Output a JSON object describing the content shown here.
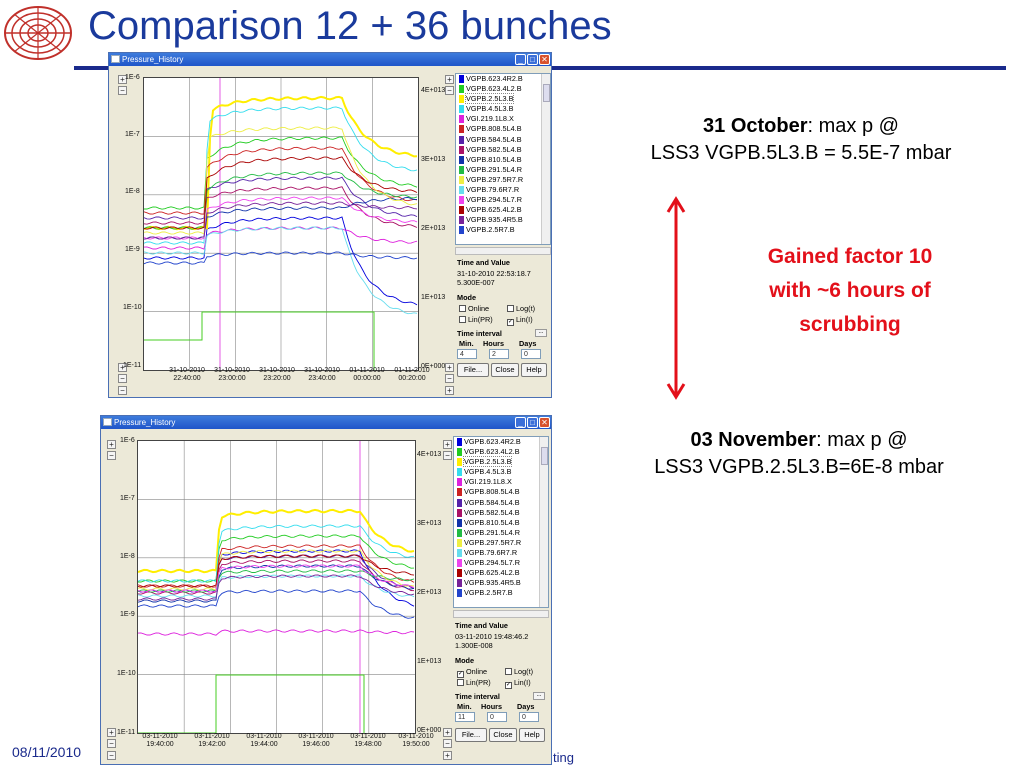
{
  "slide": {
    "title": "Comparison 12 + 36 bunches",
    "footer_date": "08/11/2010",
    "footer_tail": "ting"
  },
  "window1": {
    "title": "Pressure_History",
    "y_ticks": [
      "1E-6",
      "1E-7",
      "1E-8",
      "1E-9",
      "1E-10",
      "1E-11"
    ],
    "y2_ticks": [
      "4E+013",
      "3E+013",
      "2E+013",
      "1E+013",
      "0E+000"
    ],
    "x_ticks": [
      {
        "date": "31-10-2010",
        "time": "22:40:00"
      },
      {
        "date": "31-10-2010",
        "time": "23:00:00"
      },
      {
        "date": "31-10-2010",
        "time": "23:20:00"
      },
      {
        "date": "31-10-2010",
        "time": "23:40:00"
      },
      {
        "date": "01-11-2010",
        "time": "00:00:00"
      },
      {
        "date": "01-11-2010",
        "time": "00:20:00"
      }
    ],
    "time_value_label": "Time and Value",
    "time_value_line1": "31-10-2010 22:53:18.7",
    "time_value_line2": "5.300E-007",
    "mode_label": "Mode",
    "mode_online": "Online",
    "mode_logt": "Log(t)",
    "mode_linpr": "Lin(PR)",
    "mode_lini": "Lin(I)",
    "mode_online_checked": "",
    "mode_lini_checked": "✓",
    "interval_label": "Time interval",
    "interval_min": "Min.",
    "interval_hours": "Hours",
    "interval_days": "Days",
    "interval_min_val": "4",
    "interval_hours_val": "2",
    "interval_days_val": "0",
    "btn_file": "File...",
    "btn_close": "Close",
    "btn_help": "Help"
  },
  "window2": {
    "title": "Pressure_History",
    "y_ticks": [
      "1E-6",
      "1E-7",
      "1E-8",
      "1E-9",
      "1E-10",
      "1E-11"
    ],
    "y2_ticks": [
      "4E+013",
      "3E+013",
      "2E+013",
      "1E+013",
      "0E+000"
    ],
    "x_ticks": [
      {
        "date": "03-11-2010",
        "time": "19:40:00"
      },
      {
        "date": "03-11-2010",
        "time": "19:42:00"
      },
      {
        "date": "03-11-2010",
        "time": "19:44:00"
      },
      {
        "date": "03-11-2010",
        "time": "19:46:00"
      },
      {
        "date": "03-11-2010",
        "time": "19:48:00"
      },
      {
        "date": "03-11-2010",
        "time": "19:50:00"
      }
    ],
    "time_value_label": "Time and Value",
    "time_value_line1": "03-11-2010 19:48:46.2",
    "time_value_line2": "1.300E-008",
    "mode_label": "Mode",
    "mode_online": "Online",
    "mode_logt": "Log(t)",
    "mode_linpr": "Lin(PR)",
    "mode_lini": "Lin(I)",
    "mode_online_checked": "✓",
    "mode_lini_checked": "✓",
    "interval_label": "Time interval",
    "interval_min": "Min.",
    "interval_hours": "Hours",
    "interval_days": "Days",
    "interval_min_val": "11",
    "interval_hours_val": "0",
    "interval_days_val": "0",
    "btn_file": "File...",
    "btn_close": "Close",
    "btn_help": "Help"
  },
  "gauges": [
    {
      "name": "VGPB.623.4R2.B",
      "color": "#0000dd"
    },
    {
      "name": "VGPB.623.4L2.B",
      "color": "#22cc22"
    },
    {
      "name": "VGPB.2.5L3.B",
      "color": "#ffee00"
    },
    {
      "name": "VGPB.4.5L3.B",
      "color": "#33ddee"
    },
    {
      "name": "VGI.219.1L8.X",
      "color": "#dd22dd"
    },
    {
      "name": "VGPB.808.5L4.B",
      "color": "#cc2222"
    },
    {
      "name": "VGPB.584.5L4.B",
      "color": "#5522aa"
    },
    {
      "name": "VGPB.582.5L4.B",
      "color": "#aa1166"
    },
    {
      "name": "VGPB.810.5L4.B",
      "color": "#1133aa"
    },
    {
      "name": "VGPB.291.5L4.R",
      "color": "#22bb44"
    },
    {
      "name": "VGPB.297.5R7.R",
      "color": "#eeee44"
    },
    {
      "name": "VGPB.79.6R7.R",
      "color": "#66ddee"
    },
    {
      "name": "VGPB.294.5L7.R",
      "color": "#ee44ee"
    },
    {
      "name": "VGPB.625.4L2.B",
      "color": "#aa0000"
    },
    {
      "name": "VGPB.935.4R5.B",
      "color": "#772299"
    },
    {
      "name": "VGPB.2.5R7.B",
      "color": "#2244cc"
    }
  ],
  "annotations": {
    "oct_bold": "31 October",
    "oct_rest": ": max p @",
    "oct_line2": "LSS3 VGPB.5L3.B = 5.5E-7 mbar",
    "nov_bold": "03 November",
    "nov_rest": ": max p @",
    "nov_line2": "LSS3 VGPB.2.5L3.B=6E-8 mbar",
    "gain_line1": "Gained factor 10",
    "gain_line2": "with ~6 hours of scrubbing",
    "arrow_color": "#e3101a"
  }
}
